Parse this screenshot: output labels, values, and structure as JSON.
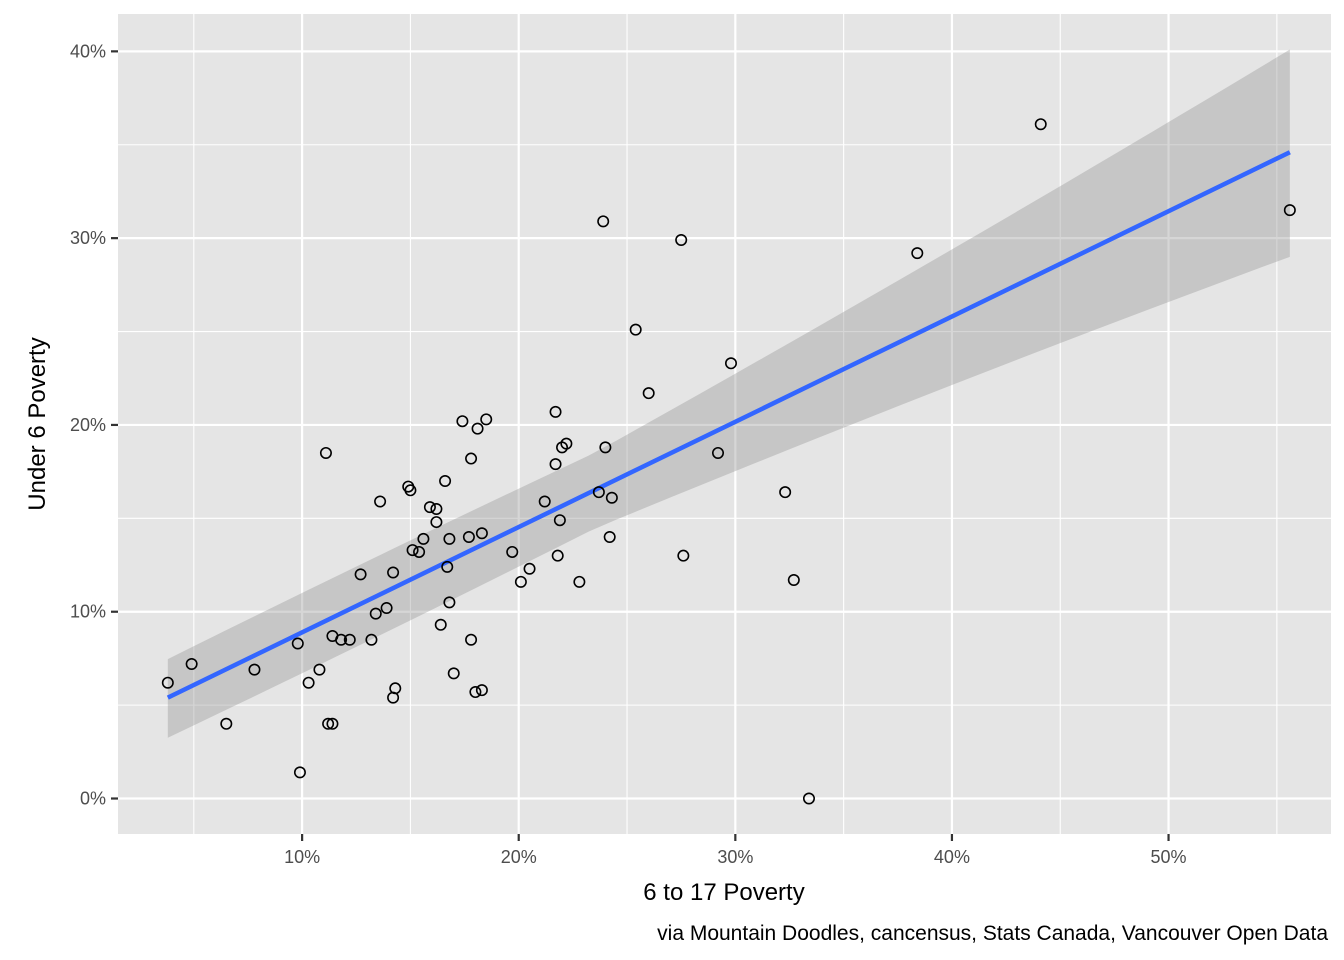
{
  "chart_data": {
    "type": "scatter",
    "title": "",
    "xlabel": "6 to 17 Poverty",
    "ylabel": "Under 6 Poverty",
    "caption": "via Mountain Doodles, cancensus, Stats Canada, Vancouver Open Data",
    "xlim": [
      1.5,
      57.5
    ],
    "ylim": [
      -1.9,
      42.0
    ],
    "x_ticks": [
      10,
      20,
      30,
      40,
      50
    ],
    "x_tick_labels": [
      "10%",
      "20%",
      "30%",
      "40%",
      "50%"
    ],
    "y_ticks": [
      0,
      10,
      20,
      30,
      40
    ],
    "y_tick_labels": [
      "0%",
      "10%",
      "20%",
      "30%",
      "40%"
    ],
    "grid": true,
    "colors": {
      "panel": "#e5e5e5",
      "grid": "#ffffff",
      "line": "#3366ff",
      "ribbon": "#999999",
      "points": "#000000"
    },
    "trend": {
      "type": "linear",
      "x": [
        3.8,
        55.6
      ],
      "y": [
        5.4,
        34.6
      ],
      "ci_lower": [
        2.8,
        29.0
      ],
      "ci_upper": [
        7.9,
        40.1
      ]
    },
    "points": [
      {
        "x": 3.8,
        "y": 6.2
      },
      {
        "x": 4.9,
        "y": 7.2
      },
      {
        "x": 6.5,
        "y": 4.0
      },
      {
        "x": 7.8,
        "y": 6.9
      },
      {
        "x": 9.8,
        "y": 8.3
      },
      {
        "x": 9.9,
        "y": 1.4
      },
      {
        "x": 10.3,
        "y": 6.2
      },
      {
        "x": 10.8,
        "y": 6.9
      },
      {
        "x": 11.1,
        "y": 18.5
      },
      {
        "x": 11.2,
        "y": 4.0
      },
      {
        "x": 11.4,
        "y": 4.0
      },
      {
        "x": 11.4,
        "y": 8.7
      },
      {
        "x": 11.8,
        "y": 8.5
      },
      {
        "x": 12.2,
        "y": 8.5
      },
      {
        "x": 12.7,
        "y": 12.0
      },
      {
        "x": 13.2,
        "y": 8.5
      },
      {
        "x": 13.4,
        "y": 9.9
      },
      {
        "x": 13.6,
        "y": 15.9
      },
      {
        "x": 13.9,
        "y": 10.2
      },
      {
        "x": 14.2,
        "y": 12.1
      },
      {
        "x": 14.2,
        "y": 5.4
      },
      {
        "x": 14.3,
        "y": 5.9
      },
      {
        "x": 14.9,
        "y": 16.7
      },
      {
        "x": 15.0,
        "y": 16.5
      },
      {
        "x": 15.1,
        "y": 13.3
      },
      {
        "x": 15.4,
        "y": 13.2
      },
      {
        "x": 15.6,
        "y": 13.9
      },
      {
        "x": 15.9,
        "y": 15.6
      },
      {
        "x": 16.2,
        "y": 15.5
      },
      {
        "x": 16.2,
        "y": 14.8
      },
      {
        "x": 16.4,
        "y": 9.3
      },
      {
        "x": 16.6,
        "y": 17.0
      },
      {
        "x": 16.7,
        "y": 12.4
      },
      {
        "x": 16.8,
        "y": 10.5
      },
      {
        "x": 16.8,
        "y": 13.9
      },
      {
        "x": 17.0,
        "y": 6.7
      },
      {
        "x": 17.4,
        "y": 20.2
      },
      {
        "x": 17.7,
        "y": 14.0
      },
      {
        "x": 17.8,
        "y": 18.2
      },
      {
        "x": 17.8,
        "y": 8.5
      },
      {
        "x": 18.0,
        "y": 5.7
      },
      {
        "x": 18.1,
        "y": 19.8
      },
      {
        "x": 18.3,
        "y": 14.2
      },
      {
        "x": 18.3,
        "y": 5.8
      },
      {
        "x": 18.5,
        "y": 20.3
      },
      {
        "x": 19.7,
        "y": 13.2
      },
      {
        "x": 20.1,
        "y": 11.6
      },
      {
        "x": 20.5,
        "y": 12.3
      },
      {
        "x": 21.2,
        "y": 15.9
      },
      {
        "x": 21.7,
        "y": 20.7
      },
      {
        "x": 21.7,
        "y": 17.9
      },
      {
        "x": 21.8,
        "y": 13.0
      },
      {
        "x": 21.9,
        "y": 14.9
      },
      {
        "x": 22.0,
        "y": 18.8
      },
      {
        "x": 22.2,
        "y": 19.0
      },
      {
        "x": 22.8,
        "y": 11.6
      },
      {
        "x": 23.7,
        "y": 16.4
      },
      {
        "x": 23.9,
        "y": 30.9
      },
      {
        "x": 24.0,
        "y": 18.8
      },
      {
        "x": 24.2,
        "y": 14.0
      },
      {
        "x": 24.3,
        "y": 16.1
      },
      {
        "x": 25.4,
        "y": 25.1
      },
      {
        "x": 26.0,
        "y": 21.7
      },
      {
        "x": 27.5,
        "y": 29.9
      },
      {
        "x": 27.6,
        "y": 13.0
      },
      {
        "x": 29.2,
        "y": 18.5
      },
      {
        "x": 29.8,
        "y": 23.3
      },
      {
        "x": 32.3,
        "y": 16.4
      },
      {
        "x": 32.7,
        "y": 11.7
      },
      {
        "x": 33.4,
        "y": 0.0
      },
      {
        "x": 38.4,
        "y": 29.2
      },
      {
        "x": 44.1,
        "y": 36.1
      },
      {
        "x": 55.6,
        "y": 31.5
      }
    ]
  }
}
